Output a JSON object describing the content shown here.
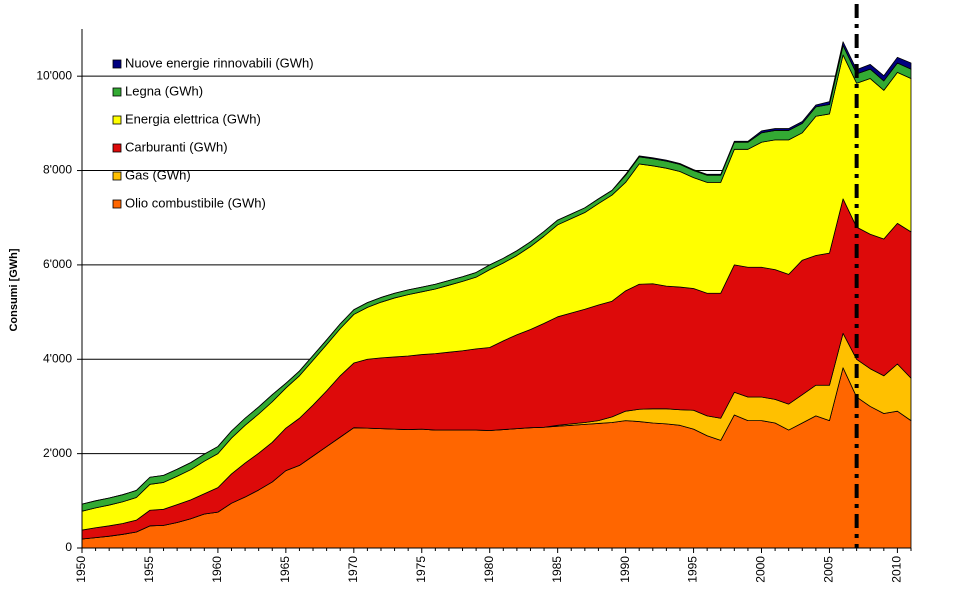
{
  "chart_data": {
    "type": "stacked_area",
    "y_label": "Consumi [GWh]",
    "x": [
      1950,
      1951,
      1952,
      1953,
      1954,
      1955,
      1956,
      1957,
      1958,
      1959,
      1960,
      1961,
      1962,
      1963,
      1964,
      1965,
      1966,
      1967,
      1968,
      1969,
      1970,
      1971,
      1972,
      1973,
      1974,
      1975,
      1976,
      1977,
      1978,
      1979,
      1980,
      1981,
      1982,
      1983,
      1984,
      1985,
      1986,
      1987,
      1988,
      1989,
      1990,
      1991,
      1992,
      1993,
      1994,
      1995,
      1996,
      1997,
      1998,
      1999,
      2000,
      2001,
      2002,
      2003,
      2004,
      2005,
      2006,
      2007,
      2008,
      2009,
      2010,
      2011
    ],
    "series": [
      {
        "name": "Olio combustibile (GWh)",
        "color": "#ff6600",
        "values": [
          190,
          220,
          250,
          290,
          340,
          470,
          480,
          540,
          620,
          720,
          760,
          950,
          1080,
          1230,
          1400,
          1640,
          1750,
          1950,
          2150,
          2350,
          2550,
          2540,
          2530,
          2520,
          2510,
          2520,
          2500,
          2500,
          2500,
          2500,
          2490,
          2510,
          2530,
          2550,
          2560,
          2580,
          2600,
          2620,
          2640,
          2660,
          2700,
          2680,
          2650,
          2630,
          2600,
          2520,
          2380,
          2280,
          2820,
          2700,
          2700,
          2650,
          2500,
          2650,
          2800,
          2700,
          3820,
          3200,
          3000,
          2850,
          2900,
          2700
        ]
      },
      {
        "name": "Gas (GWh)",
        "color": "#ffc000",
        "values": [
          0,
          0,
          0,
          0,
          0,
          0,
          0,
          0,
          0,
          0,
          0,
          0,
          0,
          0,
          0,
          0,
          0,
          0,
          0,
          0,
          0,
          0,
          0,
          0,
          0,
          0,
          0,
          0,
          0,
          0,
          0,
          0,
          0,
          0,
          0,
          20,
          30,
          40,
          60,
          120,
          200,
          260,
          300,
          320,
          330,
          400,
          420,
          470,
          480,
          500,
          500,
          500,
          550,
          600,
          650,
          750,
          730,
          800,
          800,
          800,
          1000,
          900
        ]
      },
      {
        "name": "Carburanti (GWh)",
        "color": "#dd0a0a",
        "values": [
          190,
          210,
          220,
          230,
          250,
          330,
          340,
          380,
          400,
          430,
          520,
          620,
          720,
          780,
          840,
          900,
          1000,
          1080,
          1180,
          1300,
          1370,
          1460,
          1500,
          1530,
          1560,
          1580,
          1620,
          1650,
          1680,
          1720,
          1760,
          1880,
          1990,
          2080,
          2200,
          2300,
          2350,
          2400,
          2450,
          2450,
          2550,
          2650,
          2650,
          2600,
          2600,
          2580,
          2600,
          2650,
          2700,
          2750,
          2750,
          2750,
          2750,
          2850,
          2750,
          2800,
          2850,
          2800,
          2850,
          2900,
          2980,
          3100
        ]
      },
      {
        "name": "Energia elettrica (GWh)",
        "color": "#ffff00",
        "values": [
          400,
          420,
          440,
          460,
          480,
          550,
          570,
          600,
          640,
          690,
          720,
          760,
          800,
          830,
          860,
          850,
          900,
          950,
          980,
          1000,
          1030,
          1100,
          1180,
          1250,
          1300,
          1330,
          1370,
          1420,
          1470,
          1520,
          1650,
          1650,
          1680,
          1760,
          1850,
          1950,
          2000,
          2050,
          2150,
          2250,
          2300,
          2550,
          2500,
          2500,
          2450,
          2350,
          2350,
          2350,
          2450,
          2500,
          2650,
          2750,
          2850,
          2700,
          2950,
          2950,
          3050,
          3050,
          3300,
          3150,
          3200,
          3250
        ]
      },
      {
        "name": "Legna (GWh)",
        "color": "#33aa33",
        "values": [
          150,
          150,
          150,
          150,
          150,
          150,
          150,
          150,
          150,
          150,
          150,
          150,
          150,
          150,
          150,
          100,
          100,
          100,
          100,
          100,
          100,
          100,
          100,
          100,
          100,
          100,
          100,
          100,
          100,
          100,
          100,
          100,
          100,
          100,
          100,
          100,
          100,
          100,
          100,
          100,
          150,
          150,
          150,
          150,
          150,
          150,
          150,
          150,
          150,
          150,
          200,
          200,
          200,
          200,
          200,
          200,
          200,
          200,
          200,
          200,
          200,
          200
        ]
      },
      {
        "name": "Nuove energie rinnovabili (GWh)",
        "color": "#000080",
        "values": [
          0,
          0,
          0,
          0,
          0,
          0,
          0,
          0,
          0,
          0,
          0,
          0,
          0,
          0,
          0,
          0,
          0,
          0,
          0,
          0,
          0,
          0,
          0,
          0,
          0,
          0,
          0,
          0,
          0,
          0,
          0,
          0,
          0,
          0,
          0,
          0,
          0,
          0,
          0,
          0,
          20,
          20,
          20,
          20,
          20,
          20,
          20,
          20,
          20,
          20,
          40,
          40,
          40,
          40,
          40,
          60,
          80,
          90,
          100,
          110,
          120,
          130
        ]
      }
    ],
    "xlim": [
      1950,
      2011
    ],
    "xticks": [
      1950,
      1955,
      1960,
      1965,
      1970,
      1975,
      1980,
      1985,
      1990,
      1995,
      2000,
      2005,
      2010
    ],
    "ylim": [
      0,
      11000
    ],
    "yticks": [
      0,
      {
        "value": 2000,
        "label": "2'000"
      },
      {
        "value": 4000,
        "label": "4'000"
      },
      {
        "value": 6000,
        "label": "6'000"
      },
      {
        "value": 8000,
        "label": "8'000"
      },
      {
        "value": 10000,
        "label": "10'000"
      }
    ],
    "grid": true,
    "marker_x": 2007,
    "legend": "top-left"
  }
}
